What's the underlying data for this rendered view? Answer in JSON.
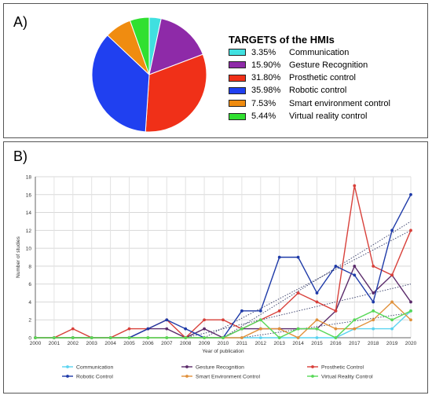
{
  "panel_a": {
    "label": "A)",
    "legend_title": "TARGETS of the HMIs",
    "slices": [
      {
        "percent": "3.35%",
        "label": "Communication",
        "value": 3.35,
        "color": "#40e0e0"
      },
      {
        "percent": "15.90%",
        "label": "Gesture Recognition",
        "value": 15.9,
        "color": "#8e2aa8"
      },
      {
        "percent": "31.80%",
        "label": "Prosthetic control",
        "value": 31.8,
        "color": "#f03018"
      },
      {
        "percent": "35.98%",
        "label": "Robotic control",
        "value": 35.98,
        "color": "#2040f0"
      },
      {
        "percent": "7.53%",
        "label": "Smart environment control",
        "value": 7.53,
        "color": "#f08c10"
      },
      {
        "percent": "5.44%",
        "label": "Virtual reality control",
        "value": 5.44,
        "color": "#30e030"
      }
    ]
  },
  "panel_b": {
    "label": "B)"
  },
  "chart_data": [
    {
      "type": "pie",
      "title": "TARGETS of the HMIs",
      "categories": [
        "Communication",
        "Gesture Recognition",
        "Prosthetic control",
        "Robotic control",
        "Smart environment control",
        "Virtual reality control"
      ],
      "values": [
        3.35,
        15.9,
        31.8,
        35.98,
        7.53,
        5.44
      ]
    },
    {
      "type": "line",
      "xlabel": "Year of publication",
      "ylabel": "Number of studies",
      "ylim": [
        0,
        18
      ],
      "yticks": [
        0,
        2,
        4,
        6,
        8,
        10,
        12,
        14,
        16,
        18
      ],
      "grid": true,
      "legend_position": "bottom",
      "x": [
        "2000",
        "2001",
        "2002",
        "2003",
        "2004",
        "2005",
        "2006",
        "2007",
        "2008",
        "2009",
        "2010",
        "2011",
        "2012",
        "2013",
        "2014",
        "2015",
        "2016",
        "2017",
        "2018",
        "2019",
        "2020"
      ],
      "series": [
        {
          "name": "Communication",
          "color": "#5bd3f0",
          "values": [
            0,
            0,
            0,
            0,
            0,
            0,
            0,
            0,
            0,
            0,
            0,
            0,
            0,
            0,
            0,
            0,
            0,
            1,
            1,
            1,
            3
          ]
        },
        {
          "name": "Gesture Recognition",
          "color": "#5a2a6a",
          "values": [
            0,
            0,
            0,
            0,
            0,
            0,
            1,
            1,
            0,
            1,
            0,
            1,
            1,
            1,
            1,
            1,
            3,
            8,
            5,
            7,
            4
          ]
        },
        {
          "name": "Prosthetic Control",
          "color": "#d8403a",
          "values": [
            0,
            0,
            1,
            0,
            0,
            1,
            1,
            2,
            0,
            2,
            2,
            1,
            2,
            3,
            5,
            4,
            3,
            17,
            8,
            7,
            12
          ]
        },
        {
          "name": "Robotic Control",
          "color": "#1e3aa8",
          "values": [
            0,
            0,
            0,
            0,
            0,
            0,
            1,
            2,
            1,
            0,
            0,
            3,
            3,
            9,
            9,
            5,
            8,
            7,
            4,
            12,
            16
          ]
        },
        {
          "name": "Smart Environment Control",
          "color": "#e0903a",
          "values": [
            0,
            0,
            0,
            0,
            0,
            0,
            0,
            0,
            0,
            0,
            0,
            0,
            1,
            1,
            0,
            2,
            1,
            1,
            2,
            4,
            2
          ]
        },
        {
          "name": "Virtual Reality Control",
          "color": "#58d858",
          "values": [
            0,
            0,
            0,
            0,
            0,
            0,
            0,
            0,
            0,
            0,
            0,
            1,
            2,
            0,
            1,
            1,
            0,
            2,
            3,
            2,
            3
          ]
        }
      ],
      "trendlines": [
        {
          "series": "Prosthetic Control",
          "from": [
            2009,
            0
          ],
          "to": [
            2020,
            12
          ]
        },
        {
          "series": "Robotic Control",
          "from": [
            2010,
            0
          ],
          "to": [
            2020,
            13
          ]
        },
        {
          "series": "Gesture Recognition",
          "from": [
            2008,
            0
          ],
          "to": [
            2020,
            6
          ]
        },
        {
          "series": "Smart Environment Control",
          "from": [
            2011,
            0
          ],
          "to": [
            2020,
            2.8
          ]
        }
      ]
    }
  ]
}
